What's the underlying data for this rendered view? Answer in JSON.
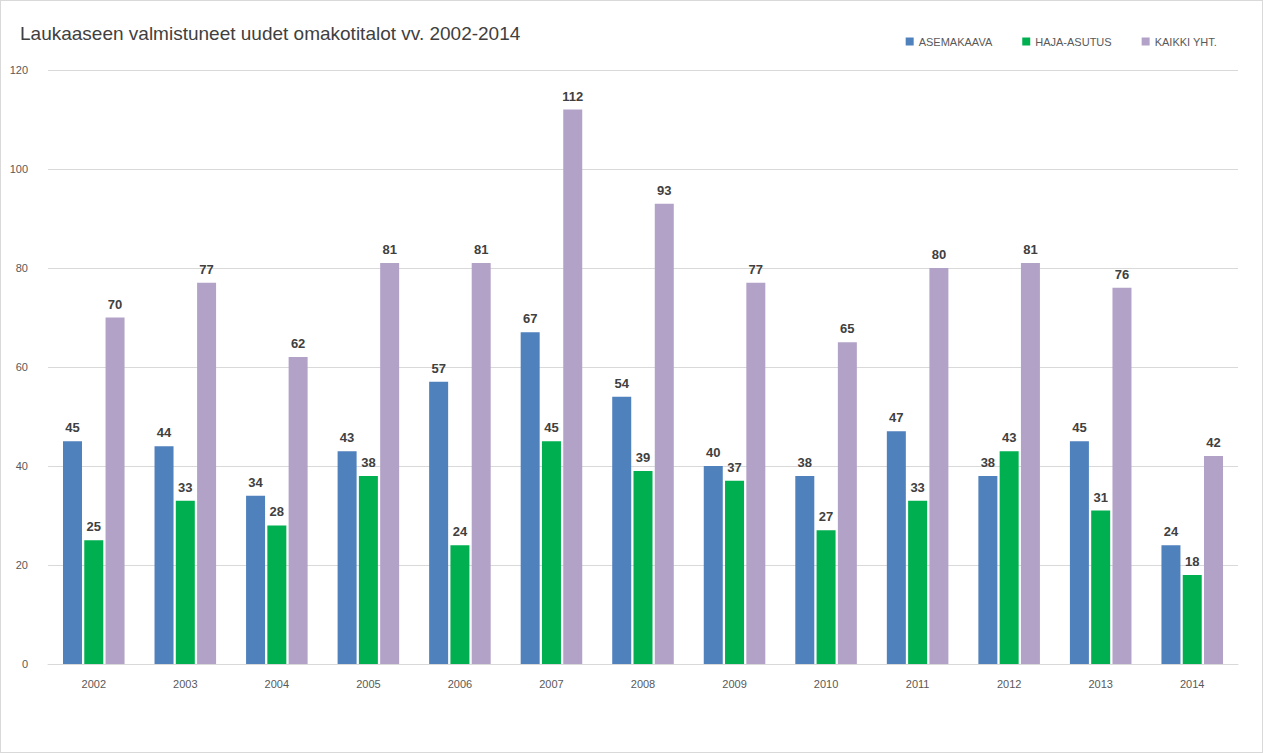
{
  "chart_data": {
    "type": "bar",
    "title": "Laukaaseen valmistuneet uudet omakotitalot vv. 2002-2014",
    "categories": [
      "2002",
      "2003",
      "2004",
      "2005",
      "2006",
      "2007",
      "2008",
      "2009",
      "2010",
      "2011",
      "2012",
      "2013",
      "2014"
    ],
    "series": [
      {
        "name": "ASEMAKAAVA",
        "color": "#4f81bd",
        "values": [
          45,
          44,
          34,
          43,
          57,
          67,
          54,
          40,
          38,
          47,
          38,
          45,
          24
        ]
      },
      {
        "name": "HAJA-ASUTUS",
        "color": "#00b050",
        "values": [
          25,
          33,
          28,
          38,
          24,
          45,
          39,
          37,
          27,
          33,
          43,
          31,
          18
        ]
      },
      {
        "name": "KAIKKI YHT.",
        "color": "#b3a2c7",
        "values": [
          70,
          77,
          62,
          81,
          81,
          112,
          93,
          77,
          65,
          80,
          81,
          76,
          42
        ]
      }
    ],
    "ylim": [
      0,
      120
    ],
    "yticks": [
      0,
      20,
      40,
      60,
      80,
      100,
      120
    ],
    "grid": true,
    "legend": "top-right",
    "data_labels": true
  }
}
